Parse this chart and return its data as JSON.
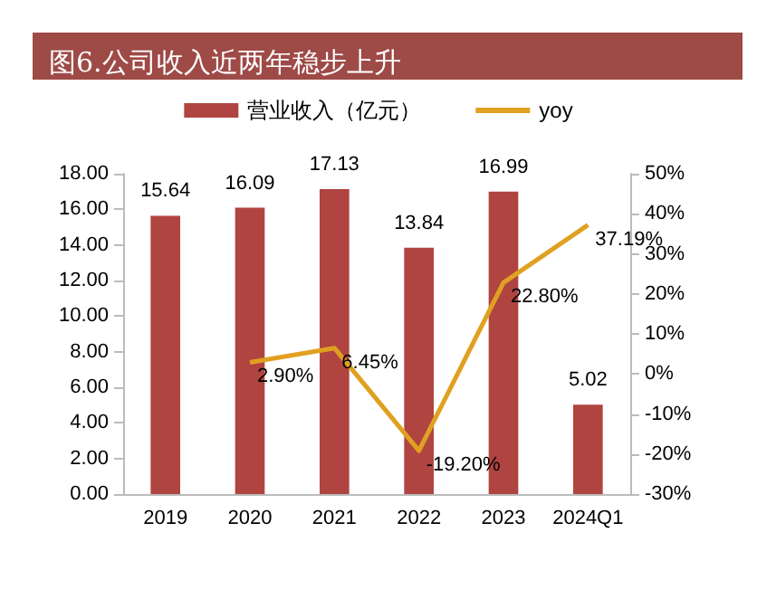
{
  "chart_data": {
    "type": "bar",
    "title": "图6.公司收入近两年稳步上升",
    "categories": [
      "2019",
      "2020",
      "2021",
      "2022",
      "2023",
      "2024Q1"
    ],
    "series": [
      {
        "name": "营业收入（亿元）",
        "color": "#b04441",
        "values": [
          15.64,
          16.09,
          17.13,
          13.84,
          16.99,
          5.02
        ]
      },
      {
        "name": "yoy",
        "type": "line",
        "axis": "y2",
        "color": "#e0a020",
        "values": [
          null,
          2.9,
          6.45,
          -19.2,
          22.8,
          37.19
        ],
        "value_labels": [
          null,
          "2.90%",
          "6.45%",
          "-19.20%",
          "22.80%",
          "37.19%"
        ]
      }
    ],
    "data_labels": true,
    "ylim": [
      0,
      18
    ],
    "yticks": [
      {
        "value": 0,
        "label": "0.00"
      },
      {
        "value": 2,
        "label": "2.00"
      },
      {
        "value": 4,
        "label": "4.00"
      },
      {
        "value": 6,
        "label": "6.00"
      },
      {
        "value": 8,
        "label": "8.00"
      },
      {
        "value": 10,
        "label": "10.00"
      },
      {
        "value": 12,
        "label": "12.00"
      },
      {
        "value": 14,
        "label": "14.00"
      },
      {
        "value": 16,
        "label": "16.00"
      },
      {
        "value": 18,
        "label": "18.00"
      }
    ],
    "y2lim": [
      -30,
      50
    ],
    "y2ticks": [
      {
        "value": -30,
        "label": "-30%"
      },
      {
        "value": -20,
        "label": "-20%"
      },
      {
        "value": -10,
        "label": "-10%"
      },
      {
        "value": 0,
        "label": "0%"
      },
      {
        "value": 10,
        "label": "10%"
      },
      {
        "value": 20,
        "label": "20%"
      },
      {
        "value": 30,
        "label": "30%"
      },
      {
        "value": 40,
        "label": "40%"
      },
      {
        "value": 50,
        "label": "50%"
      }
    ],
    "legend": "top",
    "grid": false,
    "marker": "none"
  }
}
